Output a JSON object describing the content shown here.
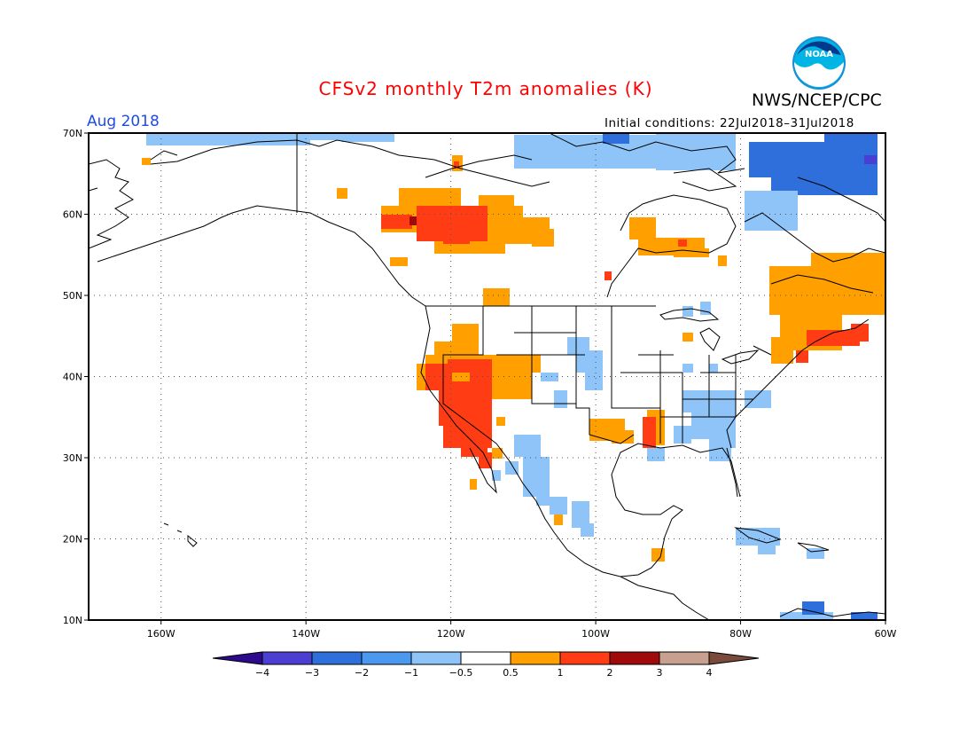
{
  "title": "CFSv2 monthly T2m anomalies (K)",
  "agency": "NWS/NCEP/CPC",
  "logo_text": "NOAA",
  "period": "Aug 2018",
  "initial_conditions": "Initial conditions: 22Jul2018–31Jul2018",
  "latitude_labels": [
    "70N",
    "60N",
    "50N",
    "40N",
    "30N",
    "20N",
    "10N"
  ],
  "longitude_labels": [
    "160W",
    "140W",
    "120W",
    "100W",
    "80W",
    "60W"
  ],
  "colorbar": {
    "tick_labels": [
      "−4",
      "−3",
      "−2",
      "−1",
      "−0.5",
      "0.5",
      "1",
      "2",
      "3",
      "4"
    ],
    "colors": [
      "#2d0a8c",
      "#4b3ed2",
      "#2e6fdc",
      "#4a98f0",
      "#8ec4f8",
      "#ffffff",
      "#ffa000",
      "#ff3c14",
      "#a00a0a",
      "#c8a090",
      "#7a4a3a"
    ]
  },
  "map_extent": {
    "lon_min": -170,
    "lon_max": -60,
    "lat_min": 10,
    "lat_max": 70
  }
}
